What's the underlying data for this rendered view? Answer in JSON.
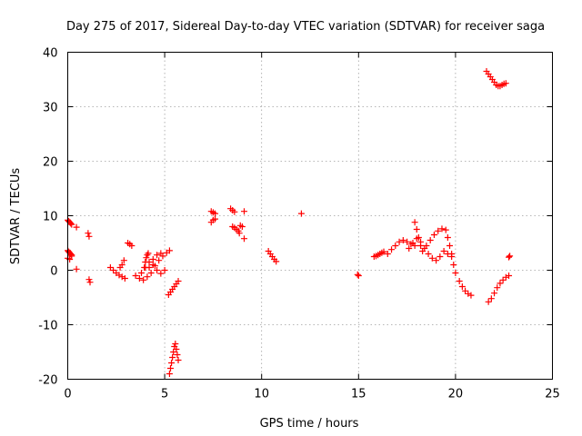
{
  "chart_data": {
    "type": "scatter",
    "title": "Day 275 of 2017, Sidereal Day-to-day VTEC variation (SDTVAR) for receiver saga",
    "xlabel": "GPS time / hours",
    "ylabel": "SDTVAR / TECUs",
    "xlim": [
      0,
      25
    ],
    "ylim": [
      -20,
      40
    ],
    "xticks": [
      0,
      5,
      10,
      15,
      20,
      25
    ],
    "yticks": [
      -20,
      -10,
      0,
      10,
      20,
      30,
      40
    ],
    "grid": true,
    "marker": "+",
    "color": "#ff0000",
    "series": [
      {
        "name": "SDTVAR",
        "segments": [
          {
            "x": [
              0.0,
              0.05,
              0.1,
              0.15,
              0.2
            ],
            "y": [
              9.2,
              9.0,
              8.8,
              8.6,
              8.4
            ]
          },
          {
            "x": [
              0.0,
              0.05,
              0.1,
              0.15,
              0.2
            ],
            "y": [
              3.6,
              3.4,
              3.2,
              3.0,
              2.8
            ]
          },
          {
            "x": [
              0.0,
              0.1,
              0.2
            ],
            "y": [
              2.2,
              2.0,
              2.6
            ]
          },
          {
            "x": [
              0.45
            ],
            "y": [
              7.9
            ]
          },
          {
            "x": [
              0.45
            ],
            "y": [
              0.2
            ]
          },
          {
            "x": [
              1.05,
              1.1
            ],
            "y": [
              6.8,
              6.2
            ]
          },
          {
            "x": [
              1.1,
              1.15
            ],
            "y": [
              -1.7,
              -2.2
            ]
          },
          {
            "x": [
              2.2,
              2.35,
              2.5,
              2.65,
              2.8,
              2.95
            ],
            "y": [
              0.5,
              0.0,
              -0.5,
              -0.9,
              -1.2,
              -1.5
            ]
          },
          {
            "x": [
              2.7,
              2.8,
              2.9
            ],
            "y": [
              0.5,
              1.0,
              1.8
            ]
          },
          {
            "x": [
              3.1,
              3.2,
              3.3
            ],
            "y": [
              5.0,
              4.8,
              4.5
            ]
          },
          {
            "x": [
              3.5,
              3.7,
              3.9,
              4.1,
              4.3,
              4.5,
              4.7,
              4.9,
              5.1,
              5.25
            ],
            "y": [
              -1.0,
              -1.5,
              -1.8,
              -1.2,
              -0.5,
              0.8,
              1.8,
              2.6,
              3.2,
              3.6
            ]
          },
          {
            "x": [
              3.8,
              4.0,
              4.2,
              4.4,
              4.6,
              4.8,
              5.0
            ],
            "y": [
              -0.5,
              0.5,
              1.5,
              1.0,
              0.0,
              -0.6,
              0.0
            ]
          },
          {
            "x": [
              3.95,
              4.0,
              4.05,
              4.1,
              4.15
            ],
            "y": [
              0.5,
              1.5,
              2.3,
              2.8,
              3.1
            ]
          },
          {
            "x": [
              4.2,
              4.4,
              4.6,
              4.8
            ],
            "y": [
              0.5,
              2.0,
              2.8,
              3.1
            ]
          },
          {
            "x": [
              5.2,
              5.3,
              5.4,
              5.5,
              5.6,
              5.7
            ],
            "y": [
              -4.5,
              -4.0,
              -3.5,
              -3.0,
              -2.5,
              -2.0
            ]
          },
          {
            "x": [
              5.25,
              5.3,
              5.35,
              5.4,
              5.45,
              5.5,
              5.55,
              5.6,
              5.65,
              5.7
            ],
            "y": [
              -19.0,
              -18.0,
              -17.0,
              -16.0,
              -15.0,
              -14.0,
              -13.5,
              -14.5,
              -15.5,
              -16.5
            ]
          },
          {
            "x": [
              7.4,
              7.5,
              7.6
            ],
            "y": [
              10.8,
              10.6,
              10.4
            ]
          },
          {
            "x": [
              7.4,
              7.5,
              7.6
            ],
            "y": [
              8.8,
              9.2,
              9.4
            ]
          },
          {
            "x": [
              8.4,
              8.5,
              8.6
            ],
            "y": [
              11.3,
              11.0,
              10.7
            ]
          },
          {
            "x": [
              8.5,
              8.6,
              8.7,
              8.8,
              8.9,
              9.0
            ],
            "y": [
              8.0,
              7.8,
              7.5,
              7.2,
              8.2,
              8.0
            ]
          },
          {
            "x": [
              9.1,
              8.85
            ],
            "y": [
              10.8,
              6.8
            ]
          },
          {
            "x": [
              9.1
            ],
            "y": [
              5.8
            ]
          },
          {
            "x": [
              10.35,
              10.45,
              10.55,
              10.65,
              10.75
            ],
            "y": [
              3.5,
              3.0,
              2.5,
              2.0,
              1.6
            ]
          },
          {
            "x": [
              12.05
            ],
            "y": [
              10.4
            ]
          },
          {
            "x": [
              14.95,
              15.0
            ],
            "y": [
              -0.8,
              -1.0
            ]
          },
          {
            "x": [
              15.8,
              15.9,
              16.0,
              16.1,
              16.2,
              16.3
            ],
            "y": [
              2.5,
              2.6,
              2.8,
              3.0,
              3.2,
              3.4
            ]
          },
          {
            "x": [
              16.5,
              16.7,
              16.9,
              17.1,
              17.3,
              17.5,
              17.7,
              17.9
            ],
            "y": [
              3.0,
              3.8,
              4.5,
              5.2,
              5.5,
              5.2,
              4.8,
              4.5
            ]
          },
          {
            "x": [
              17.6,
              17.8,
              18.0,
              18.2,
              18.4,
              18.6,
              18.8,
              19.0,
              19.2,
              19.4,
              19.6,
              19.8
            ],
            "y": [
              4.0,
              5.0,
              5.8,
              5.2,
              4.0,
              3.0,
              2.2,
              1.8,
              2.5,
              3.5,
              3.0,
              2.5
            ]
          },
          {
            "x": [
              17.9,
              18.0,
              18.1,
              18.2
            ],
            "y": [
              8.8,
              7.5,
              6.0,
              4.5
            ]
          },
          {
            "x": [
              18.3,
              18.5,
              18.7,
              18.9,
              19.1,
              19.3,
              19.5
            ],
            "y": [
              3.5,
              4.5,
              5.5,
              6.5,
              7.2,
              7.6,
              7.4
            ]
          },
          {
            "x": [
              19.6,
              19.7,
              19.8,
              19.9,
              20.0
            ],
            "y": [
              6.0,
              4.5,
              3.0,
              1.0,
              -0.5
            ]
          },
          {
            "x": [
              20.2,
              20.35,
              20.5,
              20.65,
              20.8
            ],
            "y": [
              -2.0,
              -3.0,
              -3.8,
              -4.3,
              -4.6
            ]
          },
          {
            "x": [
              21.6,
              21.7,
              21.8,
              21.9,
              22.0
            ],
            "y": [
              36.5,
              36.0,
              35.5,
              35.0,
              34.5
            ]
          },
          {
            "x": [
              22.1,
              22.2,
              22.3,
              22.4,
              22.5,
              22.6
            ],
            "y": [
              34.0,
              33.8,
              33.8,
              34.0,
              34.2,
              34.3
            ]
          },
          {
            "x": [
              21.7,
              21.85,
              22.0,
              22.15,
              22.3,
              22.45,
              22.6,
              22.75
            ],
            "y": [
              -5.8,
              -5.2,
              -4.2,
              -3.2,
              -2.4,
              -1.8,
              -1.3,
              -1.0
            ]
          },
          {
            "x": [
              22.75,
              22.8
            ],
            "y": [
              2.4,
              2.6
            ]
          }
        ]
      }
    ]
  }
}
